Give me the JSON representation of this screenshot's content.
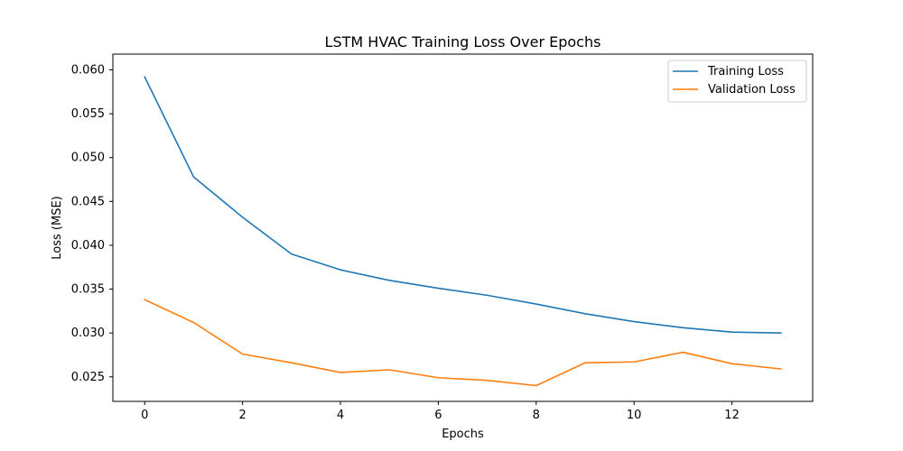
{
  "chart_data": {
    "type": "line",
    "title": "LSTM HVAC Training Loss Over Epochs",
    "xlabel": "Epochs",
    "ylabel": "Loss (MSE)",
    "x": [
      0,
      1,
      2,
      3,
      4,
      5,
      6,
      7,
      8,
      9,
      10,
      11,
      12,
      13
    ],
    "xlim": [
      -0.65,
      13.65
    ],
    "ylim": [
      0.0222,
      0.0618
    ],
    "x_ticks": [
      0,
      2,
      4,
      6,
      8,
      10,
      12
    ],
    "x_tick_labels": [
      "0",
      "2",
      "4",
      "6",
      "8",
      "10",
      "12"
    ],
    "y_ticks": [
      0.025,
      0.03,
      0.035,
      0.04,
      0.045,
      0.05,
      0.055,
      0.06
    ],
    "y_tick_labels": [
      "0.025",
      "0.030",
      "0.035",
      "0.040",
      "0.045",
      "0.050",
      "0.055",
      "0.060"
    ],
    "grid": false,
    "legend_position": "top-right",
    "series": [
      {
        "name": "Training Loss",
        "color": "#1f77b4",
        "values": [
          0.0592,
          0.0478,
          0.0432,
          0.039,
          0.0372,
          0.036,
          0.0351,
          0.0343,
          0.0333,
          0.0322,
          0.0313,
          0.0306,
          0.0301,
          0.03
        ]
      },
      {
        "name": "Validation Loss",
        "color": "#ff7f0e",
        "values": [
          0.0338,
          0.0312,
          0.0276,
          0.0266,
          0.0255,
          0.0258,
          0.0249,
          0.0246,
          0.024,
          0.0266,
          0.0267,
          0.0278,
          0.0265,
          0.0259
        ]
      }
    ]
  }
}
